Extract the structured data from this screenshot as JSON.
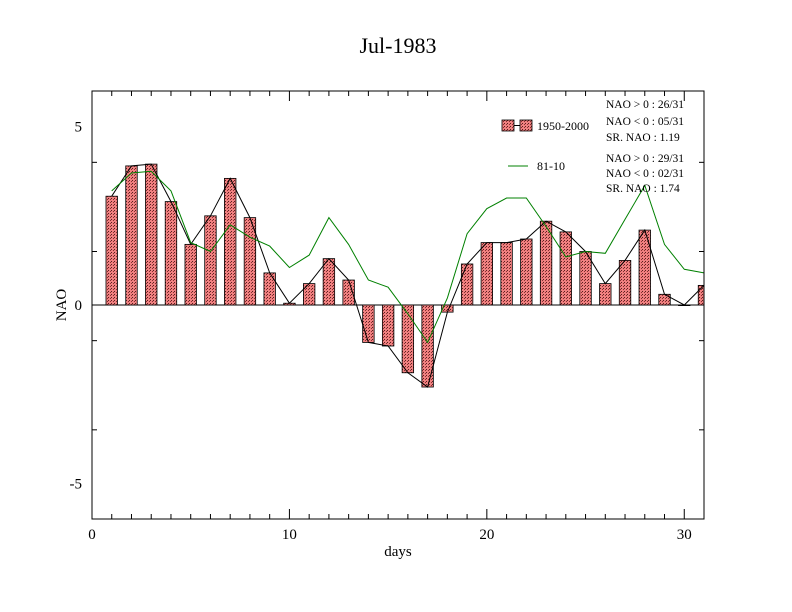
{
  "chart_data": {
    "type": "bar",
    "title": "Jul-1983",
    "xlabel": "days",
    "ylabel": "NAO",
    "xlim": [
      0,
      31
    ],
    "ylim": [
      -6,
      6
    ],
    "xticks": [
      0,
      10,
      20,
      30
    ],
    "yticks": [
      -5,
      0,
      5
    ],
    "x": [
      1,
      2,
      3,
      4,
      5,
      6,
      7,
      8,
      9,
      10,
      11,
      12,
      13,
      14,
      15,
      16,
      17,
      18,
      19,
      20,
      21,
      22,
      23,
      24,
      25,
      26,
      27,
      28,
      29,
      30,
      31
    ],
    "series": [
      {
        "name": "1950-2000",
        "kind": "bar+line",
        "bar_color": "#f08080",
        "line_color": "#000000",
        "values": [
          3.05,
          3.9,
          3.95,
          2.9,
          1.7,
          2.5,
          3.55,
          2.45,
          0.9,
          0.05,
          0.6,
          1.3,
          0.7,
          -1.05,
          -1.15,
          -1.9,
          -2.3,
          -0.2,
          1.15,
          1.75,
          1.75,
          1.85,
          2.35,
          2.05,
          1.5,
          0.6,
          1.25,
          2.1,
          0.3,
          0.0,
          0.55
        ]
      },
      {
        "name": "81-10",
        "kind": "line",
        "line_color": "#008000",
        "values": [
          3.2,
          3.7,
          3.75,
          3.2,
          1.75,
          1.5,
          2.25,
          1.9,
          1.65,
          1.05,
          1.4,
          2.45,
          1.7,
          0.7,
          0.5,
          -0.25,
          -1.05,
          0.2,
          2.0,
          2.7,
          3.0,
          3.0,
          2.2,
          1.35,
          1.5,
          1.45,
          2.4,
          3.35,
          1.7,
          1.0,
          0.9
        ]
      }
    ],
    "legend": {
      "placement": "top-right",
      "entries": [
        {
          "label": "1950-2000",
          "stats": [
            "NAO > 0 : 26/31",
            "NAO < 0 : 05/31",
            "SR. NAO :  1.19"
          ]
        },
        {
          "label": "81-10",
          "stats": [
            "NAO > 0 : 29/31",
            "NAO < 0 : 02/31",
            "SR. NAO :  1.74"
          ]
        }
      ]
    }
  }
}
